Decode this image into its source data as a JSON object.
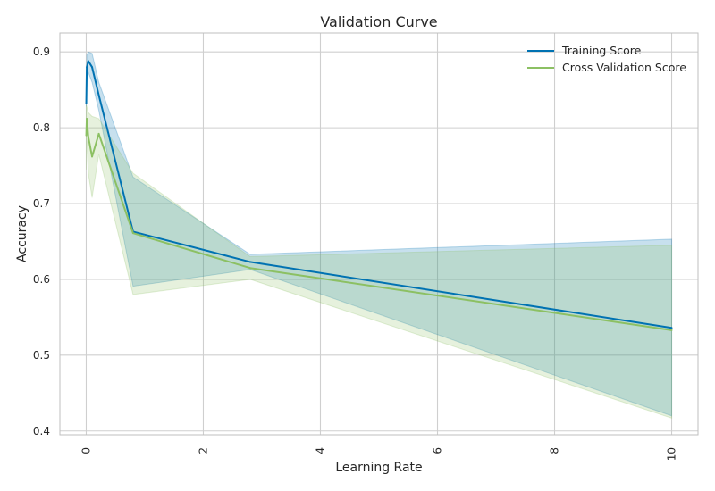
{
  "chart_data": {
    "type": "line",
    "title": "Validation Curve",
    "xlabel": "Learning Rate",
    "ylabel": "Accuracy",
    "xlim": [
      -0.45,
      10.45
    ],
    "ylim": [
      0.395,
      0.925
    ],
    "xticks": [
      0,
      2,
      4,
      6,
      8,
      10
    ],
    "yticks": [
      0.4,
      0.5,
      0.6,
      0.7,
      0.8,
      0.9
    ],
    "xtick_labels": [
      "0",
      "2",
      "4",
      "6",
      "8",
      "10"
    ],
    "ytick_labels": [
      "0.4",
      "0.5",
      "0.6",
      "0.7",
      "0.8",
      "0.9"
    ],
    "x": [
      0.001,
      0.01,
      0.036,
      0.1,
      0.215,
      0.8,
      2.8,
      10
    ],
    "grid": true,
    "legend_position": "top-right",
    "series": [
      {
        "name": "Training Score",
        "color": "#0072b2",
        "values": [
          0.832,
          0.88,
          0.888,
          0.88,
          0.843,
          0.663,
          0.623,
          0.536
        ],
        "lower": [
          0.828,
          0.862,
          0.873,
          0.86,
          0.823,
          0.591,
          0.613,
          0.42
        ],
        "upper": [
          0.836,
          0.896,
          0.9,
          0.898,
          0.86,
          0.735,
          0.633,
          0.653
        ]
      },
      {
        "name": "Cross Validation Score",
        "color": "#8cc063",
        "values": [
          0.79,
          0.812,
          0.788,
          0.762,
          0.792,
          0.661,
          0.615,
          0.533
        ],
        "lower": [
          0.745,
          0.79,
          0.74,
          0.708,
          0.765,
          0.58,
          0.6,
          0.417
        ],
        "upper": [
          0.83,
          0.828,
          0.82,
          0.815,
          0.812,
          0.74,
          0.63,
          0.645
        ]
      }
    ]
  }
}
